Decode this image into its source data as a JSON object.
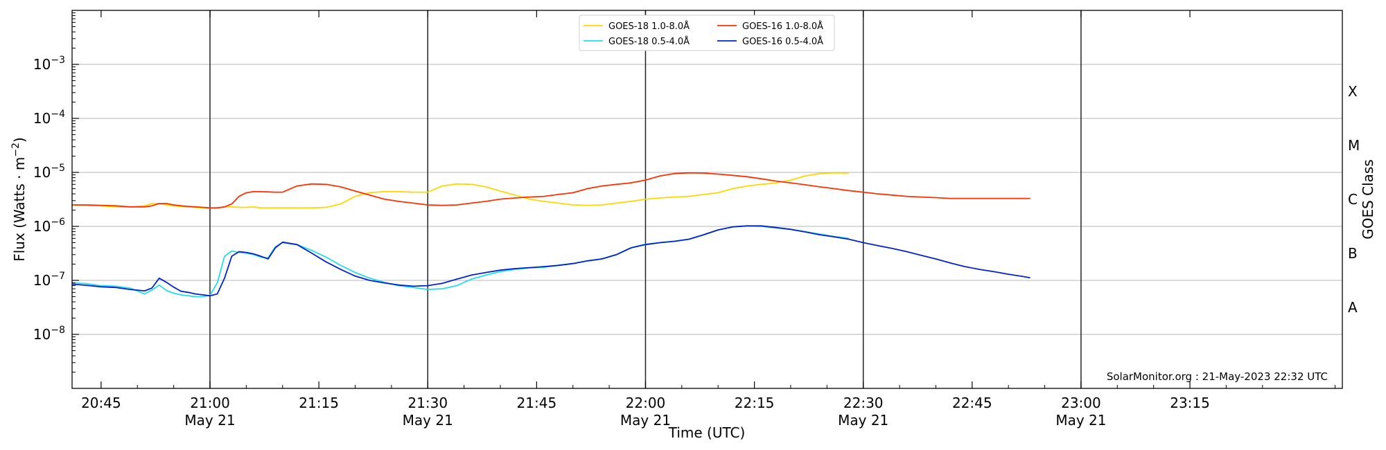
{
  "chart_data": {
    "type": "line",
    "xlabel": "Time (UTC)",
    "ylabel_main": "Flux (Watts · m",
    "ylabel_sup": "−2",
    "ylabel_close": ")",
    "y2label": "GOES Class",
    "y_scale": "log",
    "ylim": [
      1e-09,
      0.01
    ],
    "xlim": [
      -19.0,
      156.0
    ],
    "x_origin_label": "21:00 May 21",
    "y_ticks": [
      {
        "value": 1e-08,
        "base": "10",
        "exp": "−8"
      },
      {
        "value": 1e-07,
        "base": "10",
        "exp": "−7"
      },
      {
        "value": 1e-06,
        "base": "10",
        "exp": "−6"
      },
      {
        "value": 1e-05,
        "base": "10",
        "exp": "−5"
      },
      {
        "value": 0.0001,
        "base": "10",
        "exp": "−4"
      },
      {
        "value": 0.001,
        "base": "10",
        "exp": "−3"
      }
    ],
    "x_ticks": [
      {
        "x": -15,
        "time": "20:45",
        "date": ""
      },
      {
        "x": 0,
        "time": "21:00",
        "date": "May 21"
      },
      {
        "x": 15,
        "time": "21:15",
        "date": ""
      },
      {
        "x": 30,
        "time": "21:30",
        "date": "May 21"
      },
      {
        "x": 45,
        "time": "21:45",
        "date": ""
      },
      {
        "x": 60,
        "time": "22:00",
        "date": "May 21"
      },
      {
        "x": 75,
        "time": "22:15",
        "date": ""
      },
      {
        "x": 90,
        "time": "22:30",
        "date": "May 21"
      },
      {
        "x": 105,
        "time": "22:45",
        "date": ""
      },
      {
        "x": 120,
        "time": "23:00",
        "date": "May 21"
      },
      {
        "x": 135,
        "time": "23:15",
        "date": ""
      }
    ],
    "day_lines": [
      0,
      30,
      60,
      90,
      120
    ],
    "grid": true,
    "goes_classes": [
      {
        "label": "A",
        "value": 3.162e-08
      },
      {
        "label": "B",
        "value": 3.162e-07
      },
      {
        "label": "C",
        "value": 3.162e-06
      },
      {
        "label": "M",
        "value": 3.162e-05
      },
      {
        "label": "X",
        "value": 0.0003162
      }
    ],
    "legend_position": "top-center",
    "legend_columns": 2,
    "series": [
      {
        "name": "GOES-18 1.0-8.0Å",
        "color": "#ffd700",
        "x": [
          -19,
          -17,
          -15,
          -13,
          -11,
          -9,
          -8,
          -7,
          -6,
          -5,
          -4,
          -3,
          -2,
          -1,
          0,
          1,
          2,
          3,
          4,
          5,
          6,
          7,
          8,
          9,
          10,
          12,
          14,
          16,
          18,
          20,
          22,
          24,
          26,
          28,
          30,
          32,
          34,
          36,
          38,
          40,
          42,
          44,
          46,
          48,
          50,
          52,
          54,
          56,
          58,
          60,
          62,
          64,
          66,
          68,
          70,
          72,
          74,
          76,
          78,
          80,
          82,
          84,
          86,
          88
        ],
        "y": [
          2.5e-06,
          2.45e-06,
          2.4e-06,
          2.3e-06,
          2.3e-06,
          2.4e-06,
          2.65e-06,
          2.65e-06,
          2.5e-06,
          2.4e-06,
          2.35e-06,
          2.3e-06,
          2.25e-06,
          2.2e-06,
          2.2e-06,
          2.2e-06,
          2.3e-06,
          2.3e-06,
          2.25e-06,
          2.25e-06,
          2.3e-06,
          2.2e-06,
          2.2e-06,
          2.2e-06,
          2.2e-06,
          2.2e-06,
          2.2e-06,
          2.25e-06,
          2.6e-06,
          3.6e-06,
          4.2e-06,
          4.4e-06,
          4.4e-06,
          4.3e-06,
          4.3e-06,
          5.6e-06,
          6.1e-06,
          6e-06,
          5.4e-06,
          4.5e-06,
          3.8e-06,
          3.2e-06,
          2.9e-06,
          2.7e-06,
          2.5e-06,
          2.45e-06,
          2.5e-06,
          2.7e-06,
          2.9e-06,
          3.2e-06,
          3.35e-06,
          3.5e-06,
          3.6e-06,
          3.9e-06,
          4.2e-06,
          5e-06,
          5.6e-06,
          6e-06,
          6.4e-06,
          7.2e-06,
          8.6e-06,
          9.5e-06,
          9.8e-06,
          9.7e-06
        ]
      },
      {
        "name": "GOES-18 0.5-4.0Å",
        "color": "#22ddee",
        "x": [
          -19,
          -17,
          -15,
          -13,
          -11,
          -9,
          -8,
          -7,
          -6,
          -5,
          -4,
          -3,
          -2,
          -1,
          0,
          1,
          2,
          3,
          4,
          5,
          6,
          7,
          8,
          9,
          10,
          12,
          14,
          16,
          18,
          20,
          22,
          24,
          26,
          28,
          30,
          32,
          34,
          36,
          38,
          40,
          42,
          44,
          46,
          48,
          50,
          52,
          54,
          56,
          58,
          60,
          62,
          64,
          66,
          68,
          70,
          72,
          74,
          76,
          78,
          80,
          82,
          84,
          86,
          88
        ],
        "y": [
          9e-08,
          8.7e-08,
          8e-08,
          7.8e-08,
          7.2e-08,
          5.6e-08,
          6.6e-08,
          8.2e-08,
          6.5e-08,
          5.8e-08,
          5.4e-08,
          5.2e-08,
          5e-08,
          5e-08,
          5.3e-08,
          9e-08,
          2.8e-07,
          3.5e-07,
          3.3e-07,
          3.2e-07,
          3e-07,
          2.7e-07,
          2.6e-07,
          4.2e-07,
          5e-07,
          4.6e-07,
          3.6e-07,
          2.7e-07,
          1.9e-07,
          1.4e-07,
          1.1e-07,
          9.2e-08,
          8e-08,
          7.4e-08,
          6.8e-08,
          7e-08,
          8e-08,
          1.05e-07,
          1.25e-07,
          1.45e-07,
          1.6e-07,
          1.7e-07,
          1.75e-07,
          1.9e-07,
          2.05e-07,
          2.3e-07,
          2.5e-07,
          3e-07,
          4e-07,
          4.7e-07,
          5e-07,
          5.3e-07,
          5.8e-07,
          7e-07,
          8.6e-07,
          9.8e-07,
          1.02e-06,
          1e-06,
          9.4e-07,
          8.8e-07,
          8e-07,
          7.2e-07,
          6.5e-07,
          6e-07
        ]
      },
      {
        "name": "GOES-16 1.0-8.0Å",
        "color": "#ff3000",
        "x": [
          -19,
          -17,
          -15,
          -13,
          -11,
          -9,
          -8,
          -7,
          -6,
          -5,
          -4,
          -3,
          -2,
          -1,
          0,
          1,
          2,
          3,
          4,
          5,
          6,
          7,
          8,
          9,
          10,
          12,
          14,
          16,
          18,
          20,
          22,
          24,
          26,
          28,
          30,
          32,
          34,
          36,
          38,
          40,
          42,
          44,
          46,
          48,
          50,
          52,
          54,
          56,
          58,
          60,
          62,
          64,
          66,
          68,
          70,
          72,
          74,
          76,
          78,
          80,
          82,
          84,
          86,
          88,
          90,
          92,
          94,
          96,
          98,
          100,
          102,
          104,
          106,
          108,
          110,
          112,
          113
        ],
        "y": [
          2.5e-06,
          2.5e-06,
          2.45e-06,
          2.4e-06,
          2.3e-06,
          2.3e-06,
          2.4e-06,
          2.65e-06,
          2.65e-06,
          2.5e-06,
          2.4e-06,
          2.35e-06,
          2.3e-06,
          2.25e-06,
          2.2e-06,
          2.2e-06,
          2.3e-06,
          2.6e-06,
          3.6e-06,
          4.2e-06,
          4.4e-06,
          4.4e-06,
          4.35e-06,
          4.3e-06,
          4.3e-06,
          5.6e-06,
          6.1e-06,
          6e-06,
          5.4e-06,
          4.5e-06,
          3.8e-06,
          3.2e-06,
          2.9e-06,
          2.7e-06,
          2.5e-06,
          2.45e-06,
          2.5e-06,
          2.7e-06,
          2.9e-06,
          3.2e-06,
          3.35e-06,
          3.5e-06,
          3.6e-06,
          3.9e-06,
          4.2e-06,
          5e-06,
          5.6e-06,
          6e-06,
          6.4e-06,
          7.2e-06,
          8.6e-06,
          9.5e-06,
          9.8e-06,
          9.7e-06,
          9.3e-06,
          8.8e-06,
          8.3e-06,
          7.6e-06,
          6.9e-06,
          6.4e-06,
          5.9e-06,
          5.4e-06,
          5e-06,
          4.6e-06,
          4.3e-06,
          4e-06,
          3.8e-06,
          3.6e-06,
          3.5e-06,
          3.4e-06,
          3.3e-06,
          3.3e-06,
          3.3e-06,
          3.3e-06,
          3.3e-06,
          3.3e-06,
          3.3e-06
        ]
      },
      {
        "name": "GOES-16 0.5-4.0Å",
        "color": "#0022cc",
        "x": [
          -19,
          -17,
          -15,
          -13,
          -11,
          -9,
          -8,
          -7,
          -6,
          -5,
          -4,
          -3,
          -2,
          -1,
          0,
          1,
          2,
          3,
          4,
          5,
          6,
          7,
          8,
          9,
          10,
          12,
          14,
          16,
          18,
          20,
          22,
          24,
          26,
          28,
          30,
          32,
          34,
          36,
          38,
          40,
          42,
          44,
          46,
          48,
          50,
          52,
          54,
          56,
          58,
          60,
          62,
          64,
          66,
          68,
          70,
          72,
          74,
          76,
          78,
          80,
          82,
          84,
          86,
          88,
          90,
          92,
          94,
          96,
          98,
          100,
          102,
          104,
          106,
          108,
          110,
          112,
          113
        ],
        "y": [
          8.5e-08,
          8.1e-08,
          7.6e-08,
          7.4e-08,
          6.8e-08,
          6.4e-08,
          7.2e-08,
          1.1e-07,
          9.2e-08,
          7.5e-08,
          6.3e-08,
          6e-08,
          5.6e-08,
          5.4e-08,
          5.2e-08,
          5.6e-08,
          1.1e-07,
          2.8e-07,
          3.4e-07,
          3.3e-07,
          3.1e-07,
          2.8e-07,
          2.5e-07,
          4e-07,
          5.1e-07,
          4.6e-07,
          3.2e-07,
          2.2e-07,
          1.6e-07,
          1.2e-07,
          1e-07,
          9e-08,
          8.2e-08,
          7.8e-08,
          8e-08,
          8.8e-08,
          1.05e-07,
          1.25e-07,
          1.4e-07,
          1.55e-07,
          1.65e-07,
          1.72e-07,
          1.8e-07,
          1.9e-07,
          2.05e-07,
          2.3e-07,
          2.5e-07,
          3e-07,
          4e-07,
          4.6e-07,
          5e-07,
          5.3e-07,
          5.8e-07,
          7e-07,
          8.6e-07,
          9.8e-07,
          1.02e-06,
          1.02e-06,
          9.5e-07,
          8.8e-07,
          7.9e-07,
          7e-07,
          6.4e-07,
          5.8e-07,
          5e-07,
          4.4e-07,
          3.9e-07,
          3.4e-07,
          2.9e-07,
          2.5e-07,
          2.1e-07,
          1.8e-07,
          1.6e-07,
          1.45e-07,
          1.3e-07,
          1.18e-07,
          1.12e-07
        ]
      }
    ],
    "annotation": "SolarMonitor.org : 21-May-2023 22:32 UTC"
  }
}
